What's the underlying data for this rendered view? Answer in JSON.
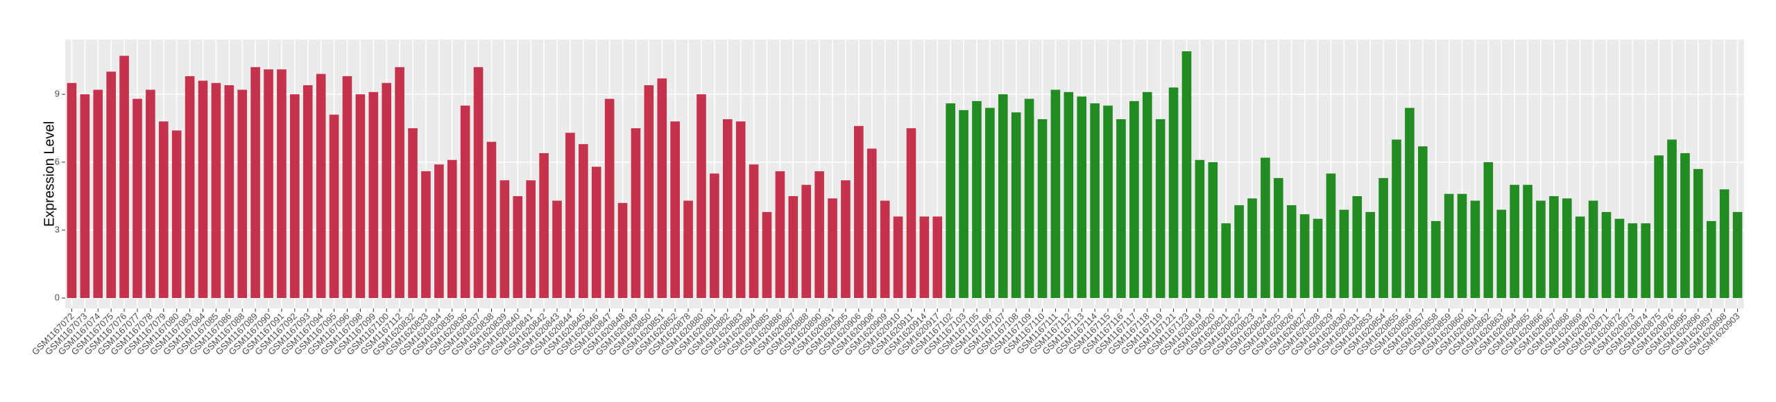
{
  "chart_data": {
    "type": "bar",
    "y_label": "Expression Level",
    "categories": [
      "GSM1167072",
      "GSM1167073",
      "GSM1167074",
      "GSM1167075",
      "GSM1167076",
      "GSM1167077",
      "GSM1167078",
      "GSM1167079",
      "GSM1167080",
      "GSM1167083",
      "GSM1167084",
      "GSM1167085",
      "GSM1167086",
      "GSM1167088",
      "GSM1167089",
      "GSM1167090",
      "GSM1167091",
      "GSM1167092",
      "GSM1167093",
      "GSM1167094",
      "GSM1167095",
      "GSM1167096",
      "GSM1167098",
      "GSM1167099",
      "GSM1167100",
      "GSM1167112",
      "GSM1620832",
      "GSM1620833",
      "GSM1620834",
      "GSM1620835",
      "GSM1620836",
      "GSM1620837",
      "GSM1620838",
      "GSM1620839",
      "GSM1620840",
      "GSM1620841",
      "GSM1620842",
      "GSM1620843",
      "GSM1620844",
      "GSM1620845",
      "GSM1620846",
      "GSM1620847",
      "GSM1620848",
      "GSM1620849",
      "GSM1620850",
      "GSM1620851",
      "GSM1620852",
      "GSM1620878",
      "GSM1620880",
      "GSM1620881",
      "GSM1620882",
      "GSM1620883",
      "GSM1620884",
      "GSM1620885",
      "GSM1620886",
      "GSM1620887",
      "GSM1620888",
      "GSM1620890",
      "GSM1620891",
      "GSM1620905",
      "GSM1620906",
      "GSM1620908",
      "GSM1620909",
      "GSM1620910",
      "GSM1620911",
      "GSM1620914",
      "GSM1620917",
      "GSM1167102",
      "GSM1167103",
      "GSM1167105",
      "GSM1167106",
      "GSM1167107",
      "GSM1167108",
      "GSM1167109",
      "GSM1167110",
      "GSM1167111",
      "GSM1167112",
      "GSM1167113",
      "GSM1167114",
      "GSM1167115",
      "GSM1167116",
      "GSM1167117",
      "GSM1167118",
      "GSM1167119",
      "GSM1167121",
      "GSM1167123",
      "GSM1620819",
      "GSM1620820",
      "GSM1620821",
      "GSM1620822",
      "GSM1620823",
      "GSM1620824",
      "GSM1620825",
      "GSM1620826",
      "GSM1620827",
      "GSM1620828",
      "GSM1620829",
      "GSM1620830",
      "GSM1620831",
      "GSM1620853",
      "GSM1620854",
      "GSM1620855",
      "GSM1620856",
      "GSM1620857",
      "GSM1620858",
      "GSM1620859",
      "GSM1620860",
      "GSM1620861",
      "GSM1620862",
      "GSM1620863",
      "GSM1620864",
      "GSM1620865",
      "GSM1620866",
      "GSM1620867",
      "GSM1620868",
      "GSM1620869",
      "GSM1620870",
      "GSM1620871",
      "GSM1620872",
      "GSM1620873",
      "GSM1620874",
      "GSM1620875",
      "GSM1620876",
      "GSM1620895",
      "GSM1620896",
      "GSM1620897",
      "GSM1620898",
      "GSM1620903"
    ],
    "series": [
      {
        "color": "#c4324b",
        "values": [
          9.5,
          9.0,
          9.2,
          10.0,
          10.7,
          8.8,
          9.2,
          7.8,
          7.4,
          9.8,
          9.6,
          9.5,
          9.4,
          9.2,
          10.2,
          10.1,
          10.1,
          9.0,
          9.4,
          9.9,
          8.1,
          9.8,
          9.0,
          9.1,
          9.5,
          10.2,
          7.5,
          5.6,
          5.9,
          6.1,
          8.5,
          10.2,
          6.9,
          5.2,
          4.5,
          5.2,
          6.4,
          4.3,
          7.3,
          6.8,
          5.8,
          8.8,
          4.2,
          7.5,
          9.4,
          9.7,
          7.8,
          4.3,
          9.0,
          5.5,
          7.9,
          7.8,
          5.9,
          3.8,
          5.6,
          4.5,
          5.0,
          5.6,
          4.4,
          5.2,
          7.6,
          6.6,
          4.3,
          3.6,
          7.5,
          3.6,
          3.6,
          null,
          null,
          null,
          null,
          null,
          null,
          null,
          null,
          null,
          null,
          null,
          null,
          null,
          null,
          null,
          null,
          null,
          null,
          null,
          null,
          null,
          null,
          null,
          null,
          null,
          null,
          null,
          null,
          null,
          null,
          null,
          null,
          null,
          null,
          null,
          null,
          null,
          null,
          null,
          null,
          null,
          null,
          null,
          null,
          null,
          null,
          null,
          null,
          null,
          null,
          null,
          null,
          null,
          null,
          null,
          null,
          null,
          null,
          null,
          null,
          null
        ]
      },
      {
        "color": "#228b22",
        "values": [
          null,
          null,
          null,
          null,
          null,
          null,
          null,
          null,
          null,
          null,
          null,
          null,
          null,
          null,
          null,
          null,
          null,
          null,
          null,
          null,
          null,
          null,
          null,
          null,
          null,
          null,
          null,
          null,
          null,
          null,
          null,
          null,
          null,
          null,
          null,
          null,
          null,
          null,
          null,
          null,
          null,
          null,
          null,
          null,
          null,
          null,
          null,
          null,
          null,
          null,
          null,
          null,
          null,
          null,
          null,
          null,
          null,
          null,
          null,
          null,
          null,
          null,
          null,
          null,
          null,
          null,
          null,
          8.6,
          8.3,
          8.7,
          8.4,
          9.0,
          8.2,
          8.8,
          7.9,
          9.2,
          9.1,
          8.9,
          8.6,
          8.5,
          7.9,
          8.7,
          9.1,
          7.9,
          9.3,
          10.9,
          6.1,
          6.0,
          3.3,
          4.1,
          4.4,
          6.2,
          5.3,
          4.1,
          3.7,
          3.5,
          5.5,
          3.9,
          4.5,
          3.8,
          5.3,
          7.0,
          8.4,
          6.7,
          3.4,
          4.6,
          4.6,
          4.3,
          6.0,
          3.9,
          5.0,
          5.0,
          4.3,
          4.5,
          4.4,
          3.6,
          4.3,
          3.8,
          3.5,
          3.3,
          3.3,
          6.3,
          7.0,
          6.4,
          5.7,
          3.4,
          4.8,
          3.8
        ]
      }
    ],
    "ylim": [
      -0.46,
      11.42
    ],
    "yticks": [
      0,
      3,
      6,
      9
    ],
    "grid": true
  }
}
